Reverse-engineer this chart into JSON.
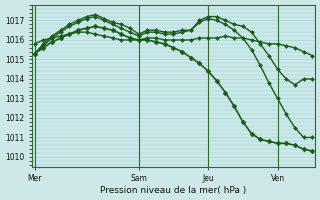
{
  "bg_color": "#cce8e8",
  "grid_color": "#99cccc",
  "line_color": "#1a5c1a",
  "ylim": [
    1009.5,
    1017.8
  ],
  "yticks": [
    1010,
    1011,
    1012,
    1013,
    1014,
    1015,
    1016,
    1017
  ],
  "xlabel": "Pression niveau de la mer( hPa )",
  "xlim": [
    0,
    96
  ],
  "vlines": [
    0,
    36,
    60,
    84
  ],
  "vline_labels": [
    "Mer",
    "Sam",
    "Jeu",
    "Ven"
  ],
  "series": [
    {
      "x": [
        0,
        3,
        6,
        9,
        12,
        15,
        18,
        21,
        24,
        27,
        30,
        33,
        36,
        39,
        42,
        45,
        48,
        51,
        54,
        57,
        60,
        63,
        66,
        69,
        72,
        75,
        78,
        81,
        84,
        87,
        90,
        93,
        96
      ],
      "y": [
        1015.8,
        1016.0,
        1016.1,
        1016.2,
        1016.3,
        1016.4,
        1016.4,
        1016.3,
        1016.2,
        1016.1,
        1016.0,
        1016.0,
        1016.0,
        1016.1,
        1016.1,
        1016.0,
        1016.0,
        1016.0,
        1016.0,
        1016.1,
        1016.1,
        1016.1,
        1016.2,
        1016.1,
        1016.1,
        1016.0,
        1015.9,
        1015.8,
        1015.8,
        1015.7,
        1015.6,
        1015.4,
        1015.2
      ],
      "marker": "D",
      "lw": 1.0,
      "ms": 2.0
    },
    {
      "x": [
        0,
        3,
        6,
        9,
        12,
        15,
        18,
        21,
        24,
        27,
        30,
        33,
        36,
        39,
        42,
        45,
        48,
        51,
        54,
        57,
        60,
        63,
        66,
        69,
        72,
        75,
        78,
        81,
        84,
        87,
        90,
        93,
        96
      ],
      "y": [
        1015.3,
        1015.8,
        1016.2,
        1016.5,
        1016.8,
        1017.0,
        1017.2,
        1017.3,
        1017.1,
        1016.9,
        1016.8,
        1016.6,
        1016.3,
        1016.5,
        1016.5,
        1016.4,
        1016.4,
        1016.5,
        1016.5,
        1017.0,
        1017.2,
        1017.2,
        1017.0,
        1016.8,
        1016.7,
        1016.4,
        1015.8,
        1015.2,
        1014.5,
        1014.0,
        1013.7,
        1014.0,
        1014.0
      ],
      "marker": "D",
      "lw": 1.0,
      "ms": 2.0
    },
    {
      "x": [
        0,
        3,
        6,
        9,
        12,
        15,
        18,
        21,
        24,
        27,
        30,
        33,
        36,
        39,
        42,
        45,
        48,
        51,
        54,
        57,
        60,
        63,
        66,
        69,
        72,
        75,
        78,
        81,
        84,
        87,
        90,
        93,
        96
      ],
      "y": [
        1015.3,
        1015.7,
        1016.1,
        1016.4,
        1016.7,
        1016.9,
        1017.1,
        1017.2,
        1017.0,
        1016.8,
        1016.6,
        1016.4,
        1016.2,
        1016.4,
        1016.4,
        1016.3,
        1016.3,
        1016.4,
        1016.5,
        1016.9,
        1017.1,
        1017.0,
        1016.8,
        1016.5,
        1016.1,
        1015.5,
        1014.7,
        1013.8,
        1013.0,
        1012.2,
        1011.5,
        1011.0,
        1011.0
      ],
      "marker": "D",
      "lw": 1.0,
      "ms": 2.0
    },
    {
      "x": [
        0,
        3,
        6,
        9,
        12,
        15,
        18,
        21,
        24,
        27,
        30,
        33,
        36,
        39,
        42,
        45,
        48,
        51,
        54,
        57,
        60,
        63,
        66,
        69,
        72,
        75,
        78,
        81,
        84,
        87,
        90,
        93,
        96
      ],
      "y": [
        1015.3,
        1015.6,
        1015.9,
        1016.1,
        1016.3,
        1016.5,
        1016.6,
        1016.7,
        1016.6,
        1016.5,
        1016.3,
        1016.1,
        1016.0,
        1016.0,
        1015.9,
        1015.8,
        1015.6,
        1015.4,
        1015.1,
        1014.8,
        1014.4,
        1013.9,
        1013.3,
        1012.6,
        1011.8,
        1011.2,
        1010.9,
        1010.8,
        1010.7,
        1010.7,
        1010.6,
        1010.4,
        1010.3
      ],
      "marker": "D",
      "lw": 1.2,
      "ms": 2.5
    }
  ]
}
